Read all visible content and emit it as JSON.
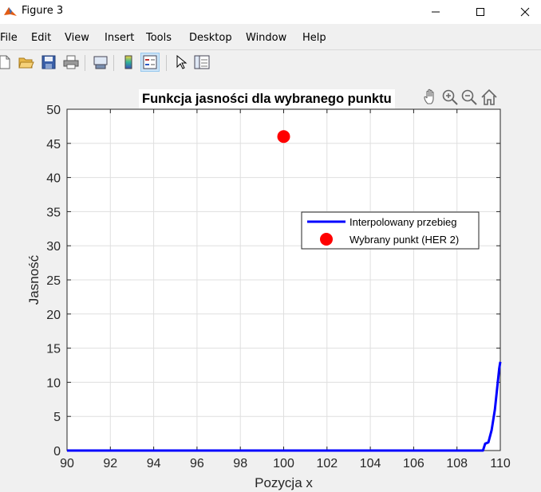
{
  "window": {
    "title": "Figure 3",
    "controls": [
      "minimize",
      "maximize",
      "close"
    ]
  },
  "menu": {
    "items": [
      "File",
      "Edit",
      "View",
      "Insert",
      "Tools",
      "Desktop",
      "Window",
      "Help"
    ]
  },
  "toolbar": {
    "buttons": [
      "new-figure-icon",
      "open-file-icon",
      "save-icon",
      "print-icon",
      "link-plot-icon",
      "colorbar-icon",
      "legend-icon",
      "pointer-icon",
      "property-inspector-icon"
    ],
    "pressed": "legend-icon"
  },
  "axes_toolbar": {
    "buttons": [
      "pan-hand-icon",
      "zoom-in-icon",
      "zoom-out-icon",
      "home-icon"
    ]
  },
  "chart_data": {
    "type": "line",
    "title": "Funkcja jasności dla wybranego punktu",
    "xlabel": "Pozycja x",
    "ylabel": "Jasność",
    "xlim": [
      90,
      110
    ],
    "ylim": [
      0,
      50
    ],
    "xticks": [
      "90",
      "92",
      "94",
      "96",
      "98",
      "100",
      "102",
      "104",
      "106",
      "108",
      "110"
    ],
    "yticks": [
      "0",
      "5",
      "10",
      "15",
      "20",
      "25",
      "30",
      "35",
      "40",
      "45",
      "50"
    ],
    "grid": true,
    "legend_position": "right",
    "series": [
      {
        "name": "Interpolowany przebieg",
        "kind": "line",
        "color": "#0000ff",
        "x": [
          90,
          109.2,
          109.3,
          109.45,
          109.6,
          109.75,
          109.85,
          109.95,
          110
        ],
        "y": [
          0,
          0,
          1,
          1.2,
          3,
          6,
          9,
          12,
          13
        ]
      },
      {
        "name": "Wybrany punkt (HER 2)",
        "kind": "marker",
        "color": "#ff0000",
        "x": [
          100
        ],
        "y": [
          46
        ]
      }
    ]
  }
}
